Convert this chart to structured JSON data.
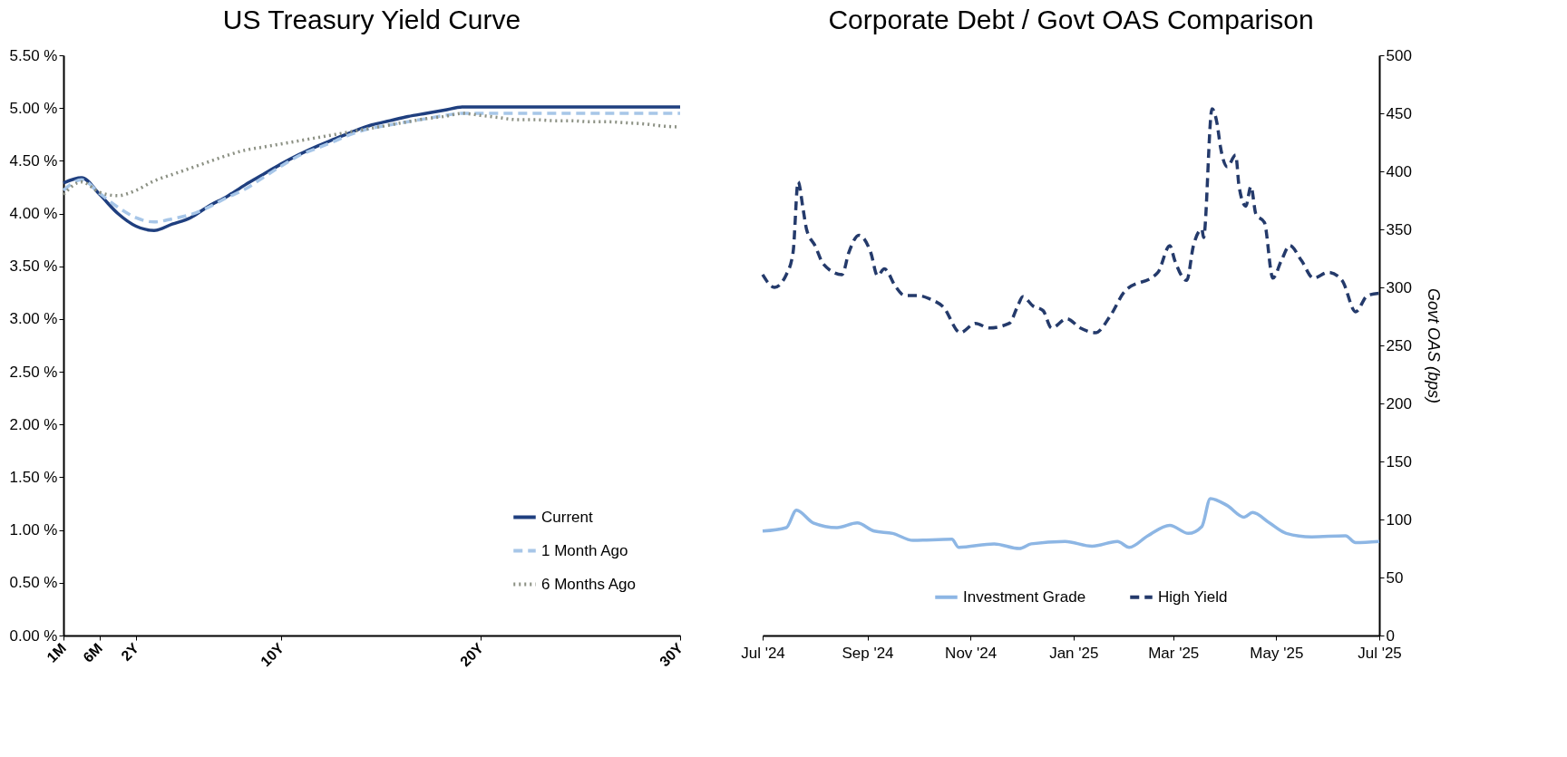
{
  "chart_data": [
    {
      "type": "line",
      "title": "US Treasury Yield Curve",
      "categories": [
        "1M",
        null,
        "6M",
        null,
        "2Y",
        null,
        null,
        null,
        null,
        null,
        null,
        null,
        "10Y",
        null,
        null,
        null,
        null,
        null,
        null,
        null,
        null,
        null,
        null,
        "20Y",
        null,
        null,
        null,
        null,
        null,
        null,
        null,
        null,
        null,
        null,
        "30Y"
      ],
      "ylim": [
        0,
        5.5
      ],
      "yticks": [
        {
          "value": 0,
          "label": "0.00 %"
        },
        {
          "value": 0.5,
          "label": "0.50 %"
        },
        {
          "value": 1,
          "label": "1.00 %"
        },
        {
          "value": 1.5,
          "label": "1.50 %"
        },
        {
          "value": 2,
          "label": "2.00 %"
        },
        {
          "value": 2.5,
          "label": "2.50 %"
        },
        {
          "value": 3,
          "label": "3.00 %"
        },
        {
          "value": 3.5,
          "label": "3.50 %"
        },
        {
          "value": 4,
          "label": "4.00 %"
        },
        {
          "value": 4.5,
          "label": "4.50 %"
        },
        {
          "value": 5,
          "label": "5.00 %"
        },
        {
          "value": 5.5,
          "label": "5.50 %"
        }
      ],
      "legend": "bottom right",
      "series": [
        {
          "name": "Current",
          "color": "#1f3f7f",
          "line_style": "solid",
          "values": [
            4.29,
            4.34,
            4.18,
            4.0,
            3.88,
            3.84,
            3.9,
            3.96,
            4.07,
            4.16,
            4.27,
            4.37,
            4.47,
            4.56,
            4.64,
            4.71,
            4.78,
            4.84,
            4.88,
            4.92,
            4.95,
            4.98,
            5.01,
            5.01,
            5.01,
            5.01,
            5.01,
            5.01,
            5.01,
            5.01,
            5.01,
            5.01,
            5.01,
            5.01,
            5.01
          ]
        },
        {
          "name": "1 Month Ago",
          "color": "#a7c6e8",
          "line_style": "dashed",
          "values": [
            4.22,
            4.32,
            4.19,
            4.06,
            3.96,
            3.92,
            3.95,
            3.99,
            4.06,
            4.15,
            4.23,
            4.34,
            4.45,
            4.55,
            4.62,
            4.69,
            4.76,
            4.81,
            4.84,
            4.87,
            4.9,
            4.93,
            4.95,
            4.95,
            4.95,
            4.95,
            4.95,
            4.95,
            4.95,
            4.95,
            4.95,
            4.95,
            4.95,
            4.95,
            4.95
          ]
        },
        {
          "name": "6 Months Ago",
          "color": "#8c9184",
          "line_style": "dotted",
          "values": [
            4.18,
            4.3,
            4.2,
            4.17,
            4.22,
            4.31,
            4.37,
            4.43,
            4.49,
            4.55,
            4.6,
            4.63,
            4.66,
            4.69,
            4.72,
            4.75,
            4.78,
            4.81,
            4.84,
            4.87,
            4.9,
            4.92,
            4.95,
            4.93,
            4.91,
            4.89,
            4.89,
            4.88,
            4.88,
            4.87,
            4.87,
            4.86,
            4.85,
            4.83,
            4.82
          ]
        }
      ]
    },
    {
      "type": "line",
      "title": "Corporate Debt / Govt OAS Comparison",
      "y2label": "Govt OAS (bps)",
      "xlim": [
        "2024-07-01",
        "2025-07-01"
      ],
      "xticks": [
        {
          "value": "2024-07-01",
          "label": "Jul '24"
        },
        {
          "value": "2024-09-01",
          "label": "Sep '24"
        },
        {
          "value": "2024-11-01",
          "label": "Nov '24"
        },
        {
          "value": "2025-01-01",
          "label": "Jan '25"
        },
        {
          "value": "2025-03-01",
          "label": "Mar '25"
        },
        {
          "value": "2025-05-01",
          "label": "May '25"
        },
        {
          "value": "2025-07-01",
          "label": "Jul '25"
        }
      ],
      "y2lim": [
        0,
        500
      ],
      "y2ticks": [
        0,
        50,
        100,
        150,
        200,
        250,
        300,
        350,
        400,
        450,
        500
      ],
      "legend": "bottom",
      "series": [
        {
          "name": "Investment Grade",
          "color": "#8db6e4",
          "line_style": "solid",
          "axis": "y2",
          "x": [
            "2024-07-01",
            "2024-07-15",
            "2024-07-21",
            "2024-07-31",
            "2024-08-14",
            "2024-08-26",
            "2024-09-05",
            "2024-09-16",
            "2024-09-28",
            "2024-10-21",
            "2024-10-25",
            "2024-11-15",
            "2024-11-30",
            "2024-12-07",
            "2024-12-27",
            "2025-01-12",
            "2025-01-27",
            "2025-02-03",
            "2025-02-14",
            "2025-02-27",
            "2025-03-10",
            "2025-03-18",
            "2025-03-23",
            "2025-04-02",
            "2025-04-12",
            "2025-04-17",
            "2025-04-27",
            "2025-05-07",
            "2025-05-22",
            "2025-06-11",
            "2025-06-17",
            "2025-07-01"
          ],
          "values": [
            90,
            93,
            108,
            97,
            93,
            97,
            90,
            88,
            82,
            83,
            76,
            79,
            75,
            79,
            81,
            77,
            81,
            76,
            86,
            95,
            88,
            94,
            118,
            112,
            102,
            106,
            97,
            88,
            85,
            86,
            80,
            81
          ]
        },
        {
          "name": "High Yield",
          "color": "#243a6b",
          "line_style": "dashed",
          "axis": "y2",
          "x": [
            "2024-07-01",
            "2024-07-08",
            "2024-07-15",
            "2024-07-19",
            "2024-07-22",
            "2024-07-25",
            "2024-07-27",
            "2024-08-01",
            "2024-08-06",
            "2024-08-17",
            "2024-08-21",
            "2024-08-27",
            "2024-09-03",
            "2024-09-07",
            "2024-09-11",
            "2024-09-18",
            "2024-09-23",
            "2024-10-01",
            "2024-10-08",
            "2024-10-16",
            "2024-10-26",
            "2024-11-04",
            "2024-11-12",
            "2024-11-24",
            "2024-11-29",
            "2024-12-02",
            "2024-12-08",
            "2024-12-14",
            "2024-12-19",
            "2024-12-28",
            "2025-01-05",
            "2025-01-14",
            "2025-01-23",
            "2025-01-31",
            "2025-02-20",
            "2025-02-27",
            "2025-03-02",
            "2025-03-09",
            "2025-03-13",
            "2025-03-18",
            "2025-03-19",
            "2025-03-24",
            "2025-03-27",
            "2025-03-29",
            "2025-04-02",
            "2025-04-07",
            "2025-04-09",
            "2025-04-13",
            "2025-04-16",
            "2025-04-19",
            "2025-04-24",
            "2025-04-29",
            "2025-05-04",
            "2025-05-09",
            "2025-05-16",
            "2025-05-23",
            "2025-06-01",
            "2025-06-09",
            "2025-06-17",
            "2025-06-24",
            "2025-07-01"
          ],
          "values": [
            311,
            300,
            311,
            330,
            391,
            367,
            350,
            336,
            320,
            311,
            330,
            345,
            330,
            310,
            316,
            300,
            293,
            293,
            290,
            283,
            261,
            269,
            265,
            269,
            284,
            292,
            284,
            280,
            265,
            273,
            265,
            261,
            276,
            296,
            313,
            336,
            323,
            306,
            336,
            350,
            343,
            454,
            441,
            421,
            404,
            414,
            387,
            370,
            387,
            363,
            356,
            308,
            323,
            336,
            323,
            308,
            313,
            306,
            279,
            293,
            295
          ]
        }
      ]
    }
  ]
}
